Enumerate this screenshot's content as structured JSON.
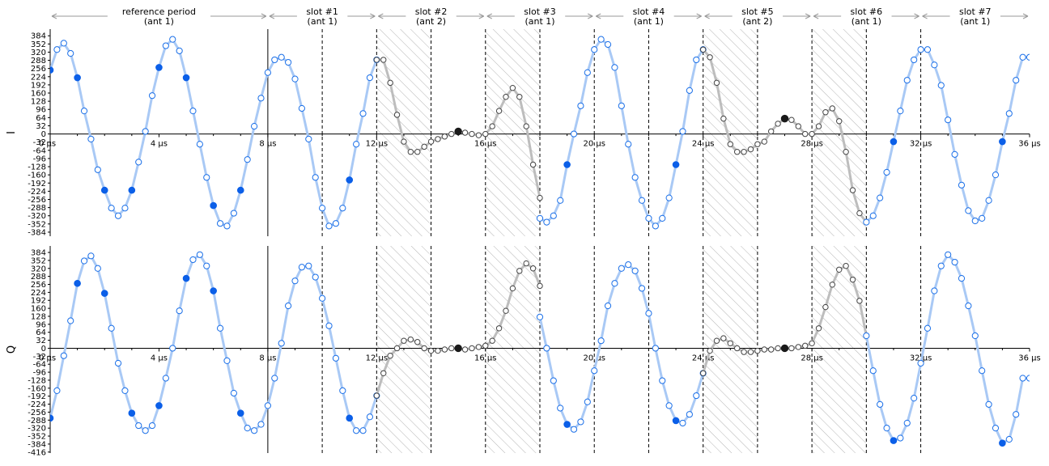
{
  "figure": {
    "colors": {
      "reference": "#a9c9f5",
      "marker_edge": "#1a6fe8",
      "marker_fill": "#0b5fe8",
      "gray_line": "#bdbdbd",
      "gray_marker": "#444444",
      "dark_marker": "#1a1a1a",
      "hatch": "#b5b5b5"
    }
  },
  "chart_data": [
    {
      "type": "line",
      "panel": "I",
      "ylabel": "I",
      "xlim": [
        0,
        36
      ],
      "ylim": [
        -400,
        410
      ],
      "x_ticks": [
        0,
        4,
        8,
        12,
        16,
        20,
        24,
        28,
        32,
        36
      ],
      "x_tick_labels": [
        "0 µs",
        "4 µs",
        "8 µs",
        "12 µs",
        "16 µs",
        "20 µs",
        "24 µs",
        "28 µs",
        "32 µs",
        "36 µs"
      ],
      "y_ticks": [
        -384,
        -352,
        -320,
        -288,
        -256,
        -224,
        -192,
        -160,
        -128,
        -96,
        -64,
        -32,
        0,
        32,
        64,
        96,
        128,
        160,
        192,
        224,
        256,
        288,
        320,
        352,
        384
      ],
      "y_tick_labels": [
        "-384",
        "-352",
        "-320",
        "-288",
        "-256",
        "-224",
        "-192",
        "-160",
        "-128",
        "-96",
        "-64",
        "-32",
        "0",
        "32",
        "64",
        "96",
        "128",
        "160",
        "192",
        "224",
        "256",
        "288",
        "320",
        "352",
        "384"
      ],
      "series": [
        {
          "style": "reference",
          "x": [
            0,
            0.25,
            0.5,
            0.75,
            1,
            1.25,
            1.5,
            1.75,
            2,
            2.25,
            2.5,
            2.75,
            3,
            3.25,
            3.5,
            3.75,
            4,
            4.25,
            4.5,
            4.75,
            5,
            5.25,
            5.5,
            5.75,
            6,
            6.25,
            6.5,
            6.75,
            7,
            7.25,
            7.5,
            7.75,
            8,
            8.25,
            8.5,
            8.75,
            9,
            9.25,
            9.5,
            9.75,
            10,
            10.25,
            10.5,
            10.75,
            11,
            11.25,
            11.5,
            11.75,
            12
          ],
          "y": [
            250,
            330,
            355,
            315,
            220,
            90,
            -20,
            -140,
            -220,
            -290,
            -320,
            -290,
            -220,
            -110,
            10,
            150,
            260,
            345,
            370,
            325,
            220,
            90,
            -40,
            -170,
            -280,
            -350,
            -360,
            -310,
            -220,
            -100,
            30,
            140,
            240,
            290,
            300,
            280,
            215,
            100,
            -20,
            -170,
            -290,
            -360,
            -350,
            -290,
            -180,
            -40,
            80,
            220,
            290
          ]
        },
        {
          "style": "gray",
          "x": [
            12,
            12.25,
            12.5,
            12.75,
            13,
            13.25,
            13.5,
            13.75,
            14,
            14.25,
            14.5,
            14.75,
            15,
            15.25,
            15.5,
            15.75,
            16,
            16.25,
            16.5,
            16.75,
            17,
            17.25,
            17.5,
            17.75,
            18
          ],
          "y": [
            290,
            290,
            200,
            75,
            -30,
            -70,
            -70,
            -50,
            -30,
            -20,
            -10,
            0,
            10,
            5,
            0,
            -5,
            0,
            30,
            90,
            145,
            180,
            145,
            30,
            -120,
            -250
          ]
        },
        {
          "style": "reference",
          "x": [
            18,
            18.25,
            18.5,
            18.75,
            19,
            19.25,
            19.5,
            19.75,
            20,
            20.25,
            20.5,
            20.75,
            21,
            21.25,
            21.5,
            21.75,
            22,
            22.25,
            22.5,
            22.75,
            23,
            23.25,
            23.5,
            23.75,
            24
          ],
          "y": [
            -330,
            -345,
            -320,
            -260,
            -120,
            0,
            110,
            240,
            330,
            370,
            350,
            260,
            110,
            -40,
            -170,
            -260,
            -330,
            -360,
            -330,
            -250,
            -120,
            10,
            170,
            290,
            330
          ]
        },
        {
          "style": "gray",
          "x": [
            24,
            24.25,
            24.5,
            24.75,
            25,
            25.25,
            25.5,
            25.75,
            26,
            26.25,
            26.5,
            26.75,
            27,
            27.25,
            27.5,
            27.75,
            28,
            28.25,
            28.5,
            28.75,
            29,
            29.25,
            29.5,
            29.75,
            30
          ],
          "y": [
            330,
            300,
            200,
            60,
            -40,
            -70,
            -70,
            -60,
            -40,
            -30,
            10,
            40,
            60,
            55,
            30,
            0,
            0,
            30,
            85,
            100,
            50,
            -70,
            -220,
            -310,
            -345
          ]
        },
        {
          "style": "reference",
          "x": [
            30,
            30.25,
            30.5,
            30.75,
            31,
            31.25,
            31.5,
            31.75,
            32,
            32.25,
            32.5,
            32.75,
            33,
            33.25,
            33.5,
            33.75,
            34,
            34.25,
            34.5,
            34.75,
            35,
            35.25,
            35.5,
            35.75,
            36
          ],
          "y": [
            -345,
            -320,
            -250,
            -150,
            -30,
            90,
            210,
            290,
            330,
            330,
            270,
            190,
            55,
            -80,
            -200,
            -300,
            -340,
            -330,
            -260,
            -160,
            -30,
            80,
            210,
            300,
            300
          ]
        }
      ],
      "highlight_points": [
        {
          "x": 0,
          "y": 250,
          "tone": "blue"
        },
        {
          "x": 1,
          "y": 220,
          "tone": "blue"
        },
        {
          "x": 2,
          "y": -220,
          "tone": "blue"
        },
        {
          "x": 3,
          "y": -220,
          "tone": "blue"
        },
        {
          "x": 4,
          "y": 260,
          "tone": "blue"
        },
        {
          "x": 5,
          "y": 220,
          "tone": "blue"
        },
        {
          "x": 6,
          "y": -280,
          "tone": "blue"
        },
        {
          "x": 7,
          "y": -220,
          "tone": "blue"
        },
        {
          "x": 11,
          "y": -180,
          "tone": "blue"
        },
        {
          "x": 15,
          "y": 10,
          "tone": "dark"
        },
        {
          "x": 19,
          "y": -120,
          "tone": "blue"
        },
        {
          "x": 23,
          "y": -120,
          "tone": "blue"
        },
        {
          "x": 27,
          "y": 60,
          "tone": "dark"
        },
        {
          "x": 31,
          "y": -30,
          "tone": "blue"
        },
        {
          "x": 35,
          "y": -30,
          "tone": "blue"
        }
      ]
    },
    {
      "type": "line",
      "panel": "Q",
      "ylabel": "Q",
      "xlim": [
        0,
        36
      ],
      "ylim": [
        -420,
        410
      ],
      "x_ticks": [
        0,
        4,
        8,
        12,
        16,
        20,
        24,
        28,
        32,
        36
      ],
      "x_tick_labels": [
        "0 µs",
        "4 µs",
        "8 µs",
        "12 µs",
        "16 µs",
        "20 µs",
        "24 µs",
        "28 µs",
        "32 µs",
        "36 µs"
      ],
      "y_ticks": [
        -416,
        -384,
        -352,
        -320,
        -288,
        -256,
        -224,
        -192,
        -160,
        -128,
        -96,
        -64,
        -32,
        0,
        32,
        64,
        96,
        128,
        160,
        192,
        224,
        256,
        288,
        320,
        352,
        384
      ],
      "y_tick_labels": [
        "-416",
        "-384",
        "-352",
        "-320",
        "-288",
        "-256",
        "-224",
        "-192",
        "-160",
        "-128",
        "-96",
        "-64",
        "-32",
        "0",
        "32",
        "64",
        "96",
        "128",
        "160",
        "192",
        "224",
        "256",
        "288",
        "320",
        "352",
        "384"
      ],
      "series": [
        {
          "style": "reference",
          "x": [
            0,
            0.25,
            0.5,
            0.75,
            1,
            1.25,
            1.5,
            1.75,
            2,
            2.25,
            2.5,
            2.75,
            3,
            3.25,
            3.5,
            3.75,
            4,
            4.25,
            4.5,
            4.75,
            5,
            5.25,
            5.5,
            5.75,
            6,
            6.25,
            6.5,
            6.75,
            7,
            7.25,
            7.5,
            7.75,
            8,
            8.25,
            8.5,
            8.75,
            9,
            9.25,
            9.5,
            9.75,
            10,
            10.25,
            10.5,
            10.75,
            11,
            11.25,
            11.5,
            11.75,
            12
          ],
          "y": [
            -280,
            -170,
            -30,
            110,
            260,
            350,
            370,
            320,
            220,
            80,
            -60,
            -170,
            -260,
            -310,
            -330,
            -310,
            -230,
            -120,
            0,
            150,
            280,
            355,
            375,
            330,
            230,
            80,
            -50,
            -180,
            -260,
            -320,
            -330,
            -305,
            -230,
            -120,
            20,
            170,
            270,
            325,
            330,
            285,
            200,
            90,
            -40,
            -170,
            -280,
            -330,
            -330,
            -275,
            -190
          ]
        },
        {
          "style": "gray",
          "x": [
            12,
            12.25,
            12.5,
            12.75,
            13,
            13.25,
            13.5,
            13.75,
            14,
            14.25,
            14.5,
            14.75,
            15,
            15.25,
            15.5,
            15.75,
            16,
            16.25,
            16.5,
            16.75,
            17,
            17.25,
            17.5,
            17.75,
            18
          ],
          "y": [
            -190,
            -100,
            -30,
            0,
            30,
            35,
            25,
            0,
            -10,
            -10,
            -5,
            0,
            0,
            -5,
            0,
            5,
            10,
            30,
            80,
            150,
            240,
            310,
            340,
            320,
            250
          ]
        },
        {
          "style": "reference",
          "x": [
            18,
            18.25,
            18.5,
            18.75,
            19,
            19.25,
            19.5,
            19.75,
            20,
            20.25,
            20.5,
            20.75,
            21,
            21.25,
            21.5,
            21.75,
            22,
            22.25,
            22.5,
            22.75,
            23,
            23.25,
            23.5,
            23.75,
            24
          ],
          "y": [
            125,
            0,
            -130,
            -240,
            -305,
            -325,
            -295,
            -215,
            -90,
            30,
            170,
            260,
            320,
            335,
            310,
            240,
            140,
            0,
            -130,
            -230,
            -290,
            -300,
            -265,
            -190,
            -100
          ]
        },
        {
          "style": "gray",
          "x": [
            24,
            24.25,
            24.5,
            24.75,
            25,
            25.25,
            25.5,
            25.75,
            26,
            26.25,
            26.5,
            26.75,
            27,
            27.25,
            27.5,
            27.75,
            28,
            28.25,
            28.5,
            28.75,
            29,
            29.25,
            29.5,
            29.75,
            30
          ],
          "y": [
            -100,
            -10,
            30,
            40,
            20,
            0,
            -15,
            -15,
            -10,
            -5,
            -5,
            0,
            0,
            0,
            5,
            10,
            20,
            80,
            165,
            255,
            315,
            330,
            275,
            190,
            50
          ]
        },
        {
          "style": "reference",
          "x": [
            30,
            30.25,
            30.5,
            30.75,
            31,
            31.25,
            31.5,
            31.75,
            32,
            32.25,
            32.5,
            32.75,
            33,
            33.25,
            33.5,
            33.75,
            34,
            34.25,
            34.5,
            34.75,
            35,
            35.25,
            35.5,
            35.75,
            36
          ],
          "y": [
            50,
            -90,
            -225,
            -320,
            -370,
            -360,
            -300,
            -200,
            -60,
            80,
            230,
            330,
            375,
            345,
            280,
            170,
            50,
            -90,
            -225,
            -320,
            -380,
            -365,
            -265,
            -120,
            -120
          ]
        }
      ],
      "highlight_points": [
        {
          "x": 0,
          "y": -280,
          "tone": "blue"
        },
        {
          "x": 1,
          "y": 260,
          "tone": "blue"
        },
        {
          "x": 2,
          "y": 220,
          "tone": "blue"
        },
        {
          "x": 3,
          "y": -260,
          "tone": "blue"
        },
        {
          "x": 4,
          "y": -230,
          "tone": "blue"
        },
        {
          "x": 5,
          "y": 280,
          "tone": "blue"
        },
        {
          "x": 6,
          "y": 230,
          "tone": "blue"
        },
        {
          "x": 7,
          "y": -260,
          "tone": "blue"
        },
        {
          "x": 11,
          "y": -280,
          "tone": "blue"
        },
        {
          "x": 15,
          "y": 0,
          "tone": "dark"
        },
        {
          "x": 19,
          "y": -305,
          "tone": "blue"
        },
        {
          "x": 23,
          "y": -290,
          "tone": "blue"
        },
        {
          "x": 27,
          "y": 0,
          "tone": "dark"
        },
        {
          "x": 31,
          "y": -370,
          "tone": "blue"
        },
        {
          "x": 35,
          "y": -380,
          "tone": "blue"
        }
      ]
    }
  ],
  "periods": [
    {
      "label": "reference period",
      "antenna": "(ant 1)",
      "start": 0,
      "end": 8
    },
    {
      "label": "slot #1",
      "antenna": "(ant 1)",
      "start": 8,
      "end": 12
    },
    {
      "label": "slot #2",
      "antenna": "(ant 2)",
      "start": 12,
      "end": 16
    },
    {
      "label": "slot #3",
      "antenna": "(ant 1)",
      "start": 16,
      "end": 20
    },
    {
      "label": "slot #4",
      "antenna": "(ant 1)",
      "start": 20,
      "end": 24
    },
    {
      "label": "slot #5",
      "antenna": "(ant 2)",
      "start": 24,
      "end": 28
    },
    {
      "label": "slot #6",
      "antenna": "(ant 1)",
      "start": 28,
      "end": 32
    },
    {
      "label": "slot #7",
      "antenna": "(ant 1)",
      "start": 32,
      "end": 36
    }
  ],
  "solid_lines": [
    8
  ],
  "dashed_lines": [
    10,
    12,
    14,
    16,
    18,
    20,
    22,
    24,
    26,
    28,
    30,
    32
  ],
  "hatched_spans": [
    [
      12,
      14
    ],
    [
      16,
      18
    ],
    [
      24,
      26
    ],
    [
      28,
      30
    ]
  ]
}
